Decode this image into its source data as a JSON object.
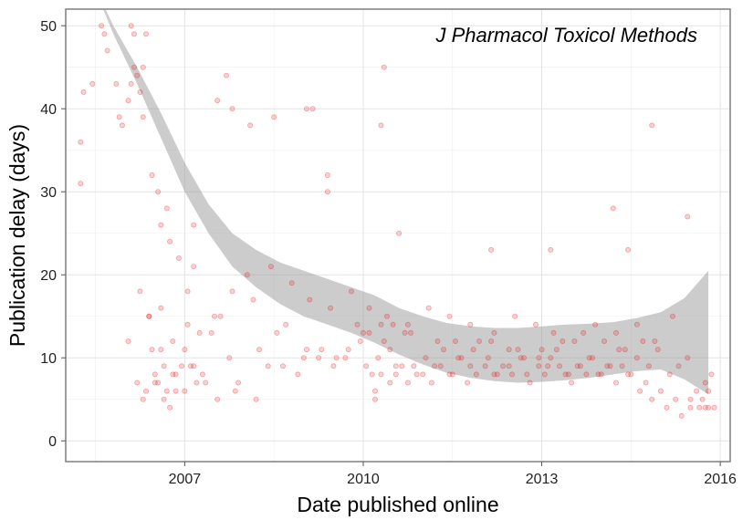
{
  "chart_data": {
    "type": "scatter",
    "title": "",
    "annotation": "J Pharmacol Toxicol Methods",
    "xlabel": "Date published online",
    "ylabel": "Publication delay (days)",
    "xlim": [
      "2005-01-01",
      "2016-03-01"
    ],
    "ylim": [
      -2.5,
      52
    ],
    "x_ticks": [
      "2007",
      "2010",
      "2013",
      "2016"
    ],
    "y_ticks": [
      "0",
      "10",
      "20",
      "30",
      "40",
      "50"
    ],
    "grid": true,
    "legend": "none",
    "point_color": "#e41a1c",
    "band_color": "#999999",
    "points_x": [
      2005.25,
      2005.25,
      2005.3,
      2005.45,
      2005.6,
      2005.65,
      2005.7,
      2005.85,
      2005.9,
      2005.95,
      2006.05,
      2006.1,
      2006.1,
      2006.15,
      2006.15,
      2006.2,
      2006.25,
      2006.3,
      2006.3,
      2006.35,
      2006.45,
      2006.55,
      2006.6,
      2006.7,
      2006.75,
      2006.9,
      2007.05,
      2007.15,
      2007.15,
      2007.55,
      2007.7,
      2007.8,
      2008.1,
      2008.5,
      2009.05,
      2009.15,
      2009.4,
      2009.4,
      2010.3,
      2010.35,
      2010.6,
      2012.15,
      2013.15,
      2014.2,
      2014.45,
      2014.85,
      2015.45,
      2006.05,
      2006.25,
      2006.4,
      2006.45,
      2006.5,
      2006.55,
      2006.6,
      2006.65,
      2006.7,
      2006.75,
      2006.8,
      2006.85,
      2006.95,
      2007.0,
      2007.1,
      2007.2,
      2007.3,
      2007.45,
      2007.6,
      2007.75,
      2007.9,
      2008.05,
      2008.25,
      2008.4,
      2008.55,
      2008.7,
      2008.9,
      2009.05,
      2009.25,
      2009.5,
      2009.7,
      2009.9,
      2010.05,
      2010.15,
      2010.25,
      2010.35,
      2010.45,
      2010.55,
      2010.7,
      2010.9,
      2011.05,
      2011.2,
      2011.35,
      2011.5,
      2011.65,
      2011.8,
      2011.95,
      2012.1,
      2012.25,
      2012.45,
      2012.6,
      2012.75,
      2012.95,
      2013.1,
      2013.25,
      2013.45,
      2013.6,
      2013.8,
      2013.95,
      2014.1,
      2014.3,
      2014.45,
      2014.6,
      2014.8,
      2014.95,
      2015.15,
      2015.3,
      2015.45,
      2015.6,
      2015.75,
      2015.85,
      2006.4,
      2006.6,
      2006.8,
      2007.05,
      2007.25,
      2007.5,
      2007.8,
      2008.15,
      2008.45,
      2008.8,
      2009.1,
      2009.45,
      2009.8,
      2010.1,
      2010.4,
      2010.75,
      2011.1,
      2011.45,
      2011.8,
      2012.2,
      2012.55,
      2012.9,
      2013.2,
      2013.55,
      2013.9,
      2014.25,
      2014.6,
      2014.9,
      2015.2,
      2015.5,
      2015.8,
      2010.2,
      2010.2,
      2010.3,
      2010.45,
      2010.55,
      2010.65,
      2010.75,
      2010.85,
      2011.0,
      2011.15,
      2011.3,
      2011.45,
      2011.6,
      2011.75,
      2011.9,
      2012.05,
      2012.2,
      2012.35,
      2012.5,
      2012.65,
      2012.8,
      2012.95,
      2013.05,
      2013.15,
      2013.3,
      2013.4,
      2013.5,
      2013.65,
      2013.75,
      2013.85,
      2014.0,
      2014.15,
      2014.25,
      2014.35,
      2014.5,
      2014.65,
      2014.75,
      2014.85,
      2015.0,
      2015.1,
      2015.25,
      2015.35,
      2015.5,
      2015.65,
      2015.7,
      2015.75,
      2015.8,
      2015.9,
      2006.2,
      2006.3,
      2006.35,
      2006.5,
      2006.65,
      2006.85,
      2007.0,
      2007.15,
      2007.35,
      2007.55,
      2007.85,
      2008.2,
      2008.65,
      2009.0,
      2009.3,
      2009.55,
      2009.75,
      2009.95,
      2010.0,
      2010.1,
      2010.3,
      2010.5,
      2010.8,
      2011.25,
      2011.55,
      2011.85,
      2012.15,
      2012.45,
      2012.7,
      2013.0,
      2013.35,
      2013.7,
      2014.05,
      2014.4,
      2014.7,
      2015.05,
      2015.4,
      2015.6,
      2015.7,
      2015.85
    ],
    "points_y": [
      36,
      31,
      42,
      43,
      50,
      49,
      47,
      43,
      39,
      38,
      41,
      50,
      43,
      49,
      45,
      44,
      42,
      39,
      45,
      49,
      32,
      30,
      26,
      28,
      24,
      22,
      18,
      26,
      21,
      41,
      44,
      40,
      38,
      39,
      40,
      40,
      32,
      30,
      38,
      45,
      25,
      23,
      23,
      28,
      23,
      38,
      27,
      12,
      18,
      15,
      11,
      8,
      7,
      11,
      9,
      6,
      4,
      8,
      6,
      9,
      11,
      9,
      7,
      8,
      13,
      15,
      10,
      7,
      20,
      11,
      9,
      13,
      14,
      8,
      11,
      10,
      9,
      10,
      14,
      9,
      8,
      10,
      12,
      11,
      9,
      13,
      8,
      10,
      9,
      11,
      8,
      10,
      9,
      12,
      10,
      8,
      9,
      11,
      8,
      10,
      9,
      11,
      8,
      9,
      10,
      8,
      9,
      11,
      8,
      10,
      9,
      11,
      8,
      9,
      10,
      6,
      7,
      8,
      15,
      16,
      12,
      14,
      13,
      15,
      18,
      17,
      21,
      19,
      17,
      16,
      18,
      16,
      15,
      14,
      16,
      15,
      14,
      13,
      15,
      14,
      13,
      12,
      14,
      13,
      14,
      12,
      15,
      4,
      6,
      5,
      6,
      8,
      7,
      8,
      9,
      7,
      9,
      8,
      7,
      9,
      8,
      10,
      7,
      8,
      9,
      8,
      9,
      8,
      10,
      7,
      9,
      8,
      10,
      9,
      8,
      7,
      9,
      8,
      10,
      8,
      9,
      7,
      9,
      8,
      6,
      7,
      5,
      6,
      4,
      5,
      3,
      5,
      4,
      5,
      4,
      4,
      4,
      7,
      5,
      6,
      7,
      5,
      8,
      6,
      9,
      7,
      5,
      6,
      5,
      9,
      10,
      11,
      10,
      11,
      12,
      13,
      13,
      14,
      14,
      13,
      12,
      12,
      11,
      12,
      11,
      10,
      11,
      12,
      13,
      12,
      11,
      12
    ],
    "band_x": [
      2005.4,
      2005.8,
      2006.2,
      2006.6,
      2007.0,
      2007.4,
      2007.8,
      2008.2,
      2008.6,
      2009.0,
      2009.4,
      2009.8,
      2010.2,
      2010.6,
      2011.0,
      2011.4,
      2011.8,
      2012.2,
      2012.6,
      2013.0,
      2013.4,
      2013.8,
      2014.2,
      2014.6,
      2015.0,
      2015.4,
      2015.8
    ],
    "band_upper": [
      56,
      50,
      45,
      39.5,
      33.5,
      28.5,
      25,
      23,
      21.5,
      20.5,
      19.5,
      18.5,
      17.5,
      16,
      15,
      14.2,
      13.8,
      13.6,
      13.6,
      13.8,
      14,
      14.1,
      14.3,
      14.8,
      15.5,
      17.2,
      20.5
    ],
    "band_lower": [
      56,
      49,
      43,
      36.5,
      30,
      25,
      21,
      18.5,
      16.5,
      15,
      14,
      13,
      11.8,
      10.4,
      9.2,
      8.2,
      7.6,
      7.2,
      7,
      7.1,
      7.3,
      7.6,
      8,
      8.4,
      8.6,
      7.4,
      5.6
    ]
  }
}
